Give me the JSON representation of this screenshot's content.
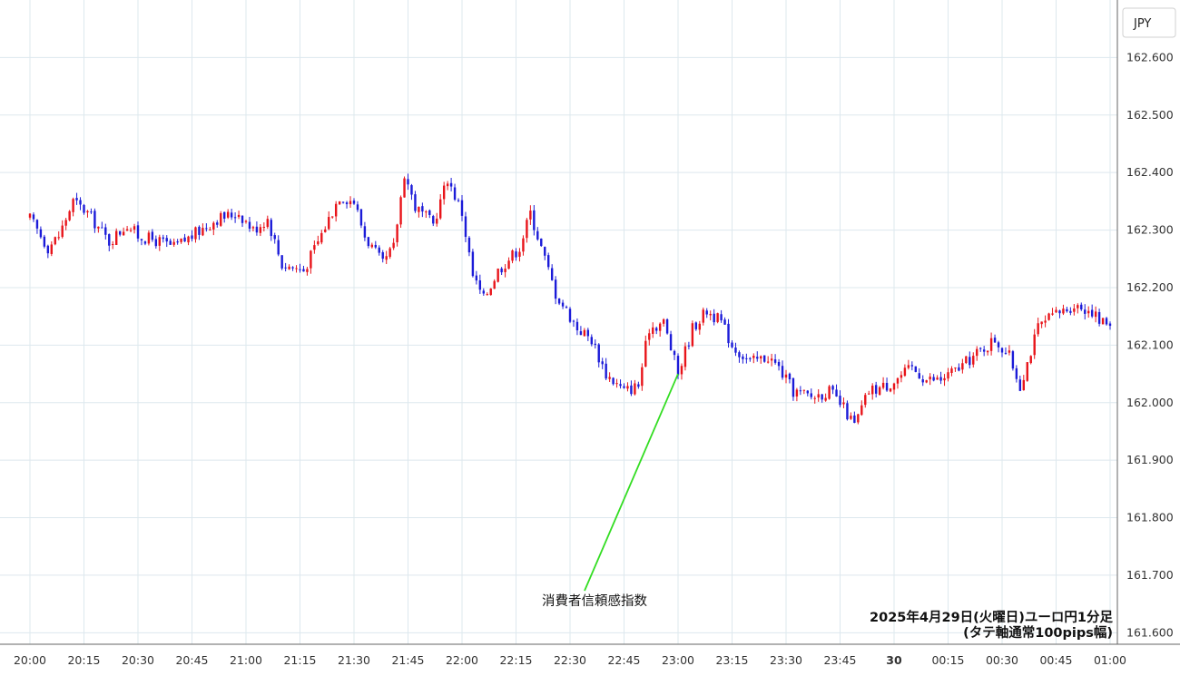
{
  "chart_data": {
    "type": "candlestick",
    "currency_label": "JPY",
    "ylim": [
      161.58,
      162.7
    ],
    "y_ticks": [
      "162.600",
      "162.500",
      "162.400",
      "162.300",
      "162.200",
      "162.100",
      "162.000",
      "161.900",
      "161.800",
      "161.700",
      "161.600"
    ],
    "x_ticks": [
      "20:00",
      "20:15",
      "20:30",
      "20:45",
      "21:00",
      "21:15",
      "21:30",
      "21:45",
      "22:00",
      "22:15",
      "22:30",
      "22:45",
      "23:00",
      "23:15",
      "23:30",
      "23:45",
      "30",
      "00:15",
      "00:30",
      "00:45",
      "01:00"
    ],
    "x_tick_bold": [
      "30"
    ],
    "annotation": {
      "label": "消費者信頼感指数",
      "time": "23:00",
      "price": 162.05
    },
    "notes": [
      "2025年4月29日(火曜日)ユーロ円1分足",
      "(タテ軸通常100pips幅)"
    ],
    "up_color": "#e8141a",
    "down_color": "#1b1bd8",
    "grid": true,
    "close_path": [
      [
        "20:00",
        162.32
      ],
      [
        "20:05",
        162.27
      ],
      [
        "20:08",
        162.29
      ],
      [
        "20:12",
        162.35
      ],
      [
        "20:16",
        162.33
      ],
      [
        "20:22",
        162.28
      ],
      [
        "20:27",
        162.31
      ],
      [
        "20:30",
        162.29
      ],
      [
        "20:36",
        162.28
      ],
      [
        "20:40",
        162.27
      ],
      [
        "20:45",
        162.29
      ],
      [
        "20:52",
        162.32
      ],
      [
        "20:58",
        162.33
      ],
      [
        "21:02",
        162.3
      ],
      [
        "21:06",
        162.32
      ],
      [
        "21:10",
        162.24
      ],
      [
        "21:16",
        162.23
      ],
      [
        "21:20",
        162.28
      ],
      [
        "21:26",
        162.36
      ],
      [
        "21:30",
        162.35
      ],
      [
        "21:33",
        162.29
      ],
      [
        "21:38",
        162.24
      ],
      [
        "21:41",
        162.27
      ],
      [
        "21:44",
        162.4
      ],
      [
        "21:47",
        162.34
      ],
      [
        "21:52",
        162.31
      ],
      [
        "21:56",
        162.39
      ],
      [
        "22:00",
        162.33
      ],
      [
        "22:03",
        162.22
      ],
      [
        "22:06",
        162.18
      ],
      [
        "22:10",
        162.23
      ],
      [
        "22:16",
        162.27
      ],
      [
        "22:19",
        162.33
      ],
      [
        "22:22",
        162.27
      ],
      [
        "22:26",
        162.19
      ],
      [
        "22:32",
        162.13
      ],
      [
        "22:36",
        162.11
      ],
      [
        "22:40",
        162.05
      ],
      [
        "22:45",
        162.02
      ],
      [
        "22:49",
        162.03
      ],
      [
        "22:52",
        162.13
      ],
      [
        "22:56",
        162.14
      ],
      [
        "23:00",
        162.05
      ],
      [
        "23:04",
        162.13
      ],
      [
        "23:08",
        162.16
      ],
      [
        "23:12",
        162.14
      ],
      [
        "23:15",
        162.1
      ],
      [
        "23:20",
        162.07
      ],
      [
        "23:25",
        162.08
      ],
      [
        "23:28",
        162.06
      ],
      [
        "23:32",
        162.02
      ],
      [
        "23:37",
        162.01
      ],
      [
        "23:42",
        162.02
      ],
      [
        "23:46",
        161.99
      ],
      [
        "23:49",
        161.96
      ],
      [
        "23:53",
        162.02
      ],
      [
        "23:58",
        162.03
      ],
      [
        "00:05",
        162.06
      ],
      [
        "00:09",
        162.04
      ],
      [
        "00:13",
        162.04
      ],
      [
        "00:18",
        162.06
      ],
      [
        "00:24",
        162.09
      ],
      [
        "00:28",
        162.11
      ],
      [
        "00:32",
        162.08
      ],
      [
        "00:35",
        162.03
      ],
      [
        "00:40",
        162.13
      ],
      [
        "00:44",
        162.15
      ],
      [
        "00:50",
        162.17
      ],
      [
        "00:55",
        162.16
      ],
      [
        "00:57",
        162.14
      ],
      [
        "01:00",
        162.14
      ]
    ]
  }
}
